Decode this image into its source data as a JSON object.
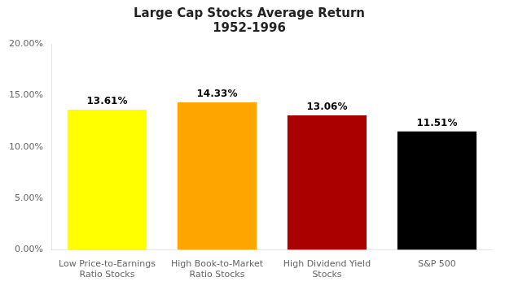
{
  "chart_data": {
    "type": "bar",
    "title": "Large Cap Stocks Average Return\n1952-1996",
    "categories": [
      "Low Price-to-Earnings\nRatio Stocks",
      "High Book-to-Market\nRatio Stocks",
      "High Dividend Yield\nStocks",
      "S&P 500"
    ],
    "values": [
      0.1361,
      0.1433,
      0.1306,
      0.1151
    ],
    "value_labels": [
      "13.61%",
      "14.33%",
      "13.06%",
      "11.51%"
    ],
    "colors": [
      "#FFFF00",
      "#FFA500",
      "#AA0000",
      "#000000"
    ],
    "ylim": [
      0,
      0.2
    ],
    "yticks": [
      {
        "value": 0,
        "label": "0.00%"
      },
      {
        "value": 0.05,
        "label": "5.00%"
      },
      {
        "value": 0.1,
        "label": "10.00%"
      },
      {
        "value": 0.15,
        "label": "15.00%"
      },
      {
        "value": 0.2,
        "label": "20.00%"
      }
    ],
    "grid": false,
    "data_labels": true
  }
}
